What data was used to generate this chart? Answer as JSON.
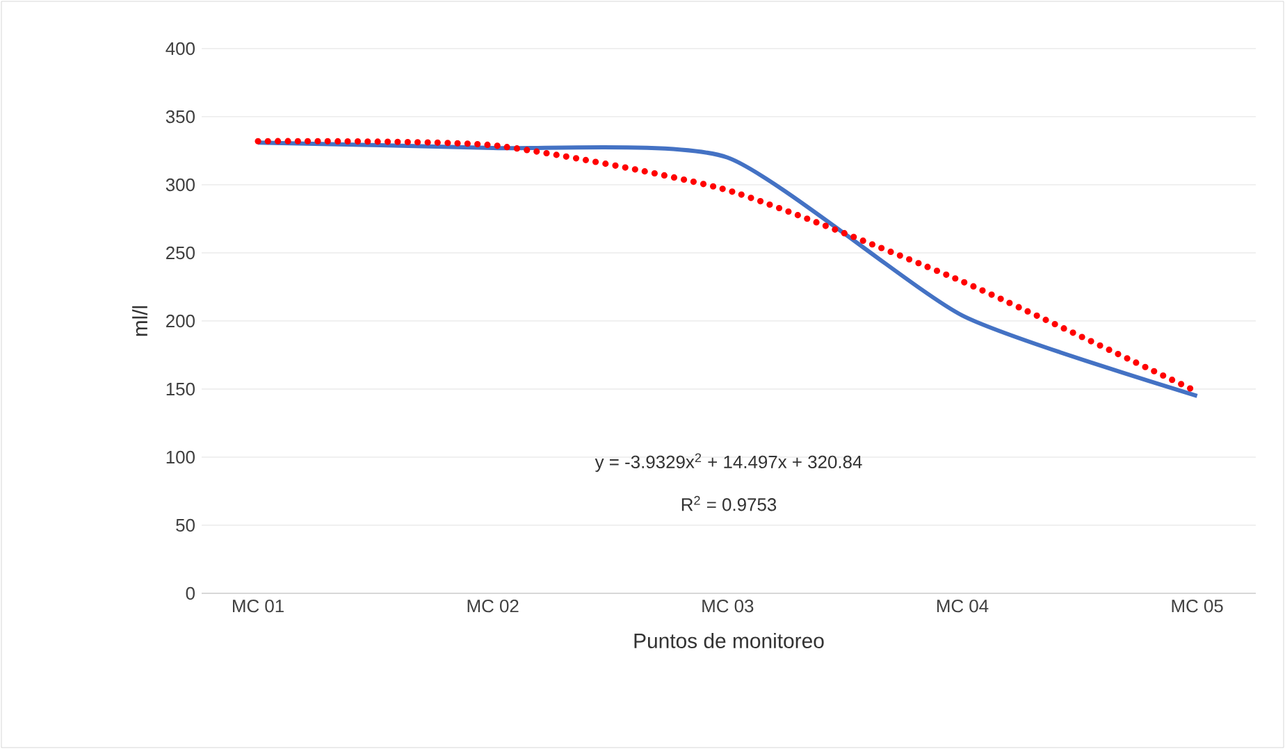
{
  "chart_data": {
    "type": "line",
    "xlabel": "Puntos de monitoreo",
    "ylabel": "ml/l",
    "categories": [
      "MC 01",
      "MC 02",
      "MC 03",
      "MC 04",
      "MC 05"
    ],
    "series": [
      {
        "color": "#4472c4",
        "values": [
          331,
          327,
          320,
          204,
          145
        ],
        "line_style": "solid"
      },
      {
        "type": "line",
        "color": "#ff0000",
        "line_style": "dotted",
        "values": [
          332,
          329,
          296,
          229,
          148
        ]
      }
    ],
    "ylim": [
      0,
      400
    ],
    "yticks": [
      0,
      50,
      100,
      150,
      200,
      250,
      300,
      350,
      400
    ],
    "grid": "y",
    "annotations": [
      "y = -3.9329x$^{2}$ + 14.497x + 320.84",
      "R$^{2}$ = 0.9753"
    ]
  }
}
